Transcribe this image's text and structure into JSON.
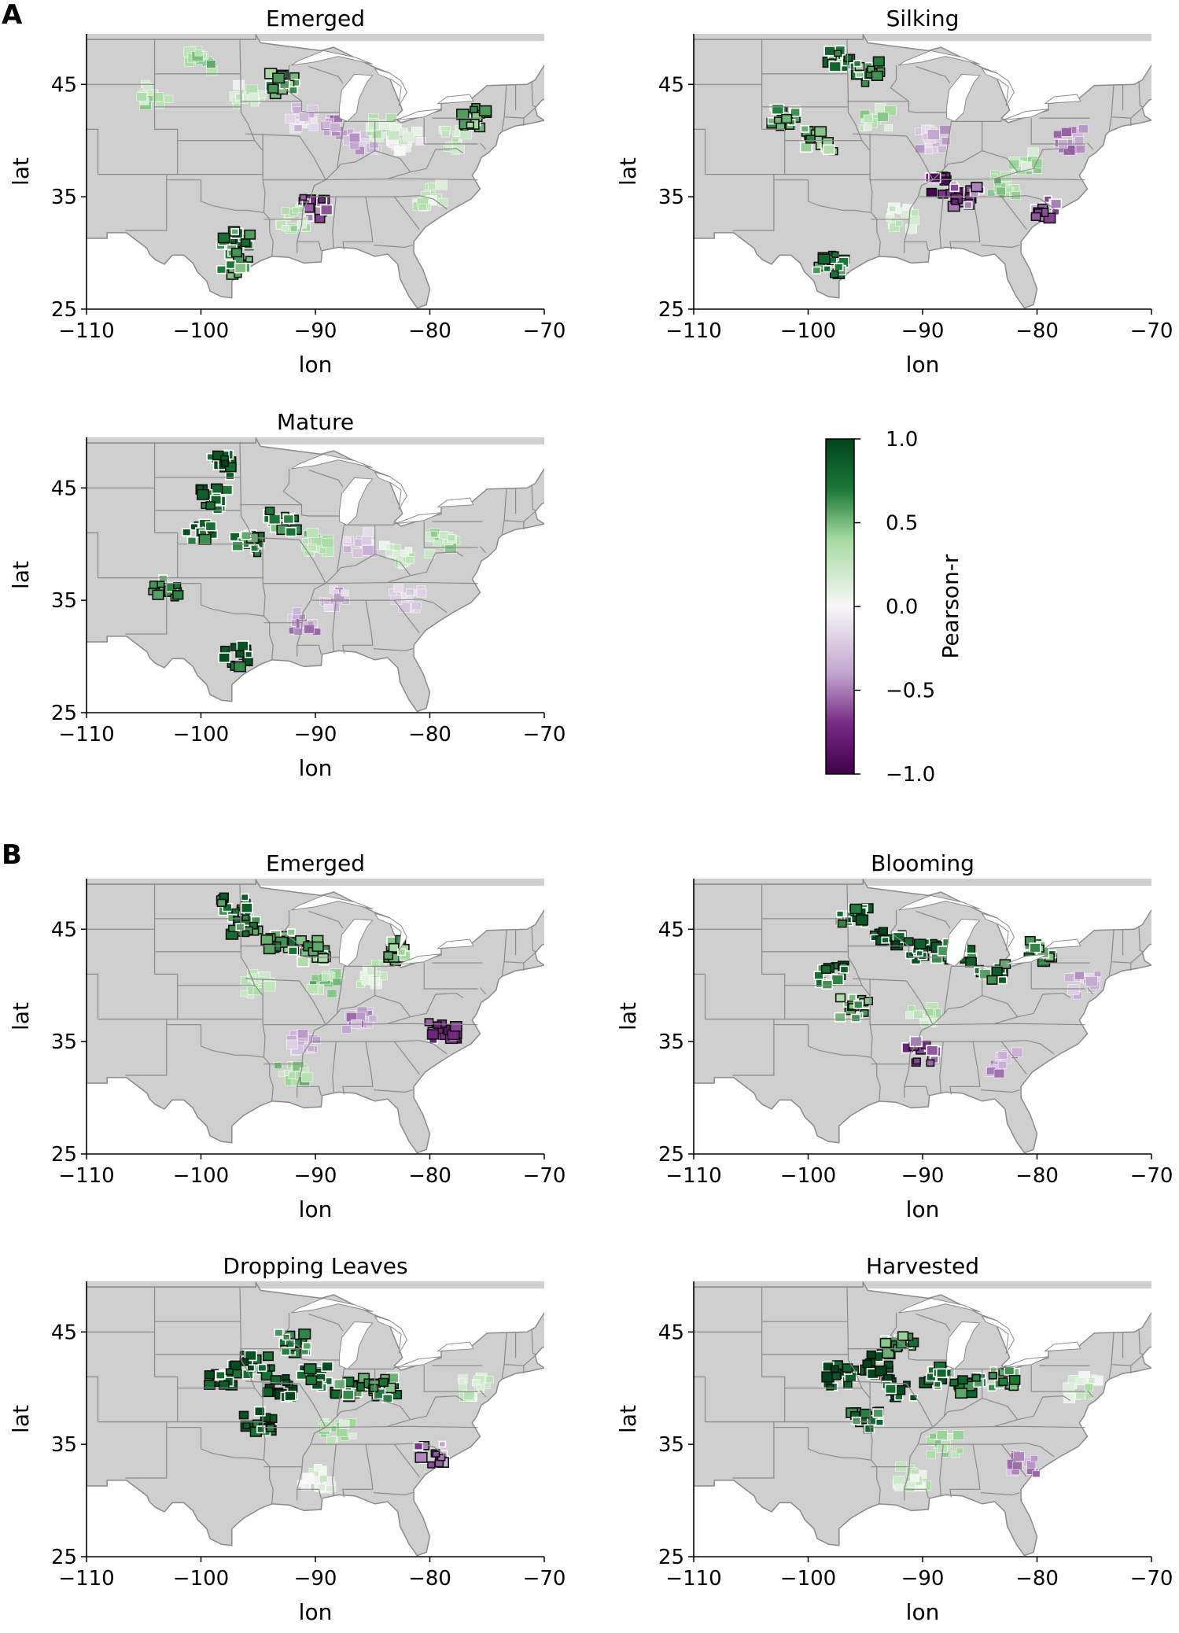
{
  "figure": {
    "panel_a_letter": "A",
    "panel_b_letter": "B"
  },
  "colors": {
    "land": "#cfcfcf",
    "state_border": "#8a8a8a",
    "significant_outline": "#111111",
    "cmap_low": "#40004b",
    "cmap_mid": "#f7f7f7",
    "cmap_high": "#00441b"
  },
  "chart_data": [
    {
      "type": "heatmap",
      "panel": "A",
      "title": "Emerged",
      "xlabel": "lon",
      "ylabel": "lat",
      "xlim": [
        -110,
        -70
      ],
      "ylim": [
        25,
        49.5
      ],
      "xticks": [
        "−110",
        "−100",
        "−90",
        "−80",
        "−70"
      ],
      "yticks": [
        "25",
        "35",
        "45"
      ],
      "regions": [
        {
          "lon": -104,
          "lat": 44,
          "r": 0.3
        },
        {
          "lon": -100,
          "lat": 47,
          "r": 0.4
        },
        {
          "lon": -96,
          "lat": 44,
          "r": 0.2
        },
        {
          "lon": -93,
          "lat": 45,
          "r": 0.5
        },
        {
          "lon": -91,
          "lat": 42,
          "r": -0.2
        },
        {
          "lon": -88,
          "lat": 41,
          "r": -0.4
        },
        {
          "lon": -86,
          "lat": 40,
          "r": -0.3
        },
        {
          "lon": -84,
          "lat": 41,
          "r": 0.2
        },
        {
          "lon": -82,
          "lat": 40,
          "r": 0.1
        },
        {
          "lon": -78,
          "lat": 40,
          "r": 0.3
        },
        {
          "lon": -76,
          "lat": 42,
          "r": 0.5
        },
        {
          "lon": -90,
          "lat": 34,
          "r": -0.6
        },
        {
          "lon": -92,
          "lat": 33,
          "r": 0.3
        },
        {
          "lon": -97,
          "lat": 31,
          "r": 0.7
        },
        {
          "lon": -97,
          "lat": 29,
          "r": 0.6
        },
        {
          "lon": -80,
          "lat": 35,
          "r": 0.2
        }
      ]
    },
    {
      "type": "heatmap",
      "panel": "A",
      "title": "Silking",
      "xlabel": "lon",
      "ylabel": "lat",
      "xlim": [
        -110,
        -70
      ],
      "ylim": [
        25,
        49.5
      ],
      "xticks": [
        "−110",
        "−100",
        "−90",
        "−80",
        "−70"
      ],
      "yticks": [
        "25",
        "35",
        "45"
      ],
      "regions": [
        {
          "lon": -97,
          "lat": 47,
          "r": 0.7
        },
        {
          "lon": -95,
          "lat": 46,
          "r": 0.6
        },
        {
          "lon": -102,
          "lat": 42,
          "r": 0.6
        },
        {
          "lon": -99,
          "lat": 40,
          "r": 0.5
        },
        {
          "lon": -94,
          "lat": 42,
          "r": 0.3
        },
        {
          "lon": -89,
          "lat": 40,
          "r": -0.3
        },
        {
          "lon": -88,
          "lat": 36,
          "r": -0.8
        },
        {
          "lon": -86,
          "lat": 35,
          "r": -0.6
        },
        {
          "lon": -83,
          "lat": 36,
          "r": 0.4
        },
        {
          "lon": -79,
          "lat": 34,
          "r": -0.5
        },
        {
          "lon": -77,
          "lat": 40,
          "r": -0.4
        },
        {
          "lon": -98,
          "lat": 29,
          "r": 0.7
        },
        {
          "lon": -92,
          "lat": 33,
          "r": 0.2
        },
        {
          "lon": -81,
          "lat": 38,
          "r": 0.3
        }
      ]
    },
    {
      "type": "heatmap",
      "panel": "A",
      "title": "Mature",
      "xlabel": "lon",
      "ylabel": "lat",
      "xlim": [
        -110,
        -70
      ],
      "ylim": [
        25,
        49.5
      ],
      "xticks": [
        "−110",
        "−100",
        "−90",
        "−80",
        "−70"
      ],
      "yticks": [
        "25",
        "35",
        "45"
      ],
      "regions": [
        {
          "lon": -98,
          "lat": 47,
          "r": 0.9
        },
        {
          "lon": -99,
          "lat": 44,
          "r": 0.8
        },
        {
          "lon": -100,
          "lat": 41,
          "r": 0.8
        },
        {
          "lon": -96,
          "lat": 40,
          "r": 0.7
        },
        {
          "lon": -93,
          "lat": 42,
          "r": 0.6
        },
        {
          "lon": -90,
          "lat": 40,
          "r": 0.4
        },
        {
          "lon": -86,
          "lat": 40,
          "r": -0.2
        },
        {
          "lon": -83,
          "lat": 39,
          "r": 0.2
        },
        {
          "lon": -79,
          "lat": 40,
          "r": 0.3
        },
        {
          "lon": -88,
          "lat": 35,
          "r": -0.3
        },
        {
          "lon": -82,
          "lat": 35,
          "r": -0.2
        },
        {
          "lon": -97,
          "lat": 30,
          "r": 0.8
        },
        {
          "lon": -103,
          "lat": 36,
          "r": 0.6
        },
        {
          "lon": -91,
          "lat": 33,
          "r": -0.4
        }
      ]
    },
    {
      "type": "heatmap",
      "panel": "B",
      "title": "Emerged",
      "xlabel": "lon",
      "ylabel": "lat",
      "xlim": [
        -110,
        -70
      ],
      "ylim": [
        25,
        49.5
      ],
      "xticks": [
        "−110",
        "−100",
        "−90",
        "−80",
        "−70"
      ],
      "yticks": [
        "25",
        "35",
        "45"
      ],
      "regions": [
        {
          "lon": -97,
          "lat": 47,
          "r": 0.7
        },
        {
          "lon": -96,
          "lat": 45,
          "r": 0.6
        },
        {
          "lon": -93,
          "lat": 44,
          "r": 0.6
        },
        {
          "lon": -90,
          "lat": 43,
          "r": 0.5
        },
        {
          "lon": -89,
          "lat": 40,
          "r": 0.4
        },
        {
          "lon": -85,
          "lat": 41,
          "r": 0.2
        },
        {
          "lon": -83,
          "lat": 43,
          "r": 0.5
        },
        {
          "lon": -86,
          "lat": 37,
          "r": -0.4
        },
        {
          "lon": -79,
          "lat": 36,
          "r": -0.7
        },
        {
          "lon": -91,
          "lat": 35,
          "r": -0.3
        },
        {
          "lon": -92,
          "lat": 32,
          "r": 0.4
        },
        {
          "lon": -95,
          "lat": 40,
          "r": 0.2
        }
      ]
    },
    {
      "type": "heatmap",
      "panel": "B",
      "title": "Blooming",
      "xlabel": "lon",
      "ylabel": "lat",
      "xlim": [
        -110,
        -70
      ],
      "ylim": [
        25,
        49.5
      ],
      "xticks": [
        "−110",
        "−100",
        "−90",
        "−80",
        "−70"
      ],
      "yticks": [
        "25",
        "35",
        "45"
      ],
      "regions": [
        {
          "lon": -96,
          "lat": 46,
          "r": 0.8
        },
        {
          "lon": -93,
          "lat": 44,
          "r": 0.9
        },
        {
          "lon": -90,
          "lat": 43,
          "r": 0.8
        },
        {
          "lon": -87,
          "lat": 43,
          "r": 0.7
        },
        {
          "lon": -84,
          "lat": 41,
          "r": 0.7
        },
        {
          "lon": -98,
          "lat": 41,
          "r": 0.7
        },
        {
          "lon": -96,
          "lat": 38,
          "r": 0.5
        },
        {
          "lon": -90,
          "lat": 37,
          "r": 0.3
        },
        {
          "lon": -90,
          "lat": 34,
          "r": -0.6
        },
        {
          "lon": -83,
          "lat": 33,
          "r": -0.4
        },
        {
          "lon": -76,
          "lat": 40,
          "r": -0.3
        },
        {
          "lon": -80,
          "lat": 43,
          "r": 0.6
        }
      ]
    },
    {
      "type": "heatmap",
      "panel": "B",
      "title": "Dropping Leaves",
      "xlabel": "lon",
      "ylabel": "lat",
      "xlim": [
        -110,
        -70
      ],
      "ylim": [
        25,
        49.5
      ],
      "xticks": [
        "−110",
        "−100",
        "−90",
        "−80",
        "−70"
      ],
      "yticks": [
        "25",
        "35",
        "45"
      ],
      "regions": [
        {
          "lon": -98,
          "lat": 41,
          "r": 0.9
        },
        {
          "lon": -95,
          "lat": 42,
          "r": 0.9
        },
        {
          "lon": -93,
          "lat": 40,
          "r": 0.9
        },
        {
          "lon": -90,
          "lat": 41,
          "r": 0.8
        },
        {
          "lon": -87,
          "lat": 40,
          "r": 0.7
        },
        {
          "lon": -84,
          "lat": 40,
          "r": 0.6
        },
        {
          "lon": -92,
          "lat": 44,
          "r": 0.7
        },
        {
          "lon": -95,
          "lat": 37,
          "r": 0.8
        },
        {
          "lon": -88,
          "lat": 36,
          "r": 0.3
        },
        {
          "lon": -80,
          "lat": 34,
          "r": -0.5
        },
        {
          "lon": -90,
          "lat": 32,
          "r": 0.1
        },
        {
          "lon": -76,
          "lat": 40,
          "r": 0.2
        }
      ]
    },
    {
      "type": "heatmap",
      "panel": "B",
      "title": "Harvested",
      "xlabel": "lon",
      "ylabel": "lat",
      "xlim": [
        -110,
        -70
      ],
      "ylim": [
        25,
        49.5
      ],
      "xticks": [
        "−110",
        "−100",
        "−90",
        "−80",
        "−70"
      ],
      "yticks": [
        "25",
        "35",
        "45"
      ],
      "regions": [
        {
          "lon": -97,
          "lat": 41,
          "r": 0.9
        },
        {
          "lon": -94,
          "lat": 42,
          "r": 0.9
        },
        {
          "lon": -92,
          "lat": 40,
          "r": 0.9
        },
        {
          "lon": -89,
          "lat": 41,
          "r": 0.8
        },
        {
          "lon": -86,
          "lat": 40,
          "r": 0.7
        },
        {
          "lon": -83,
          "lat": 41,
          "r": 0.6
        },
        {
          "lon": -92,
          "lat": 44,
          "r": 0.6
        },
        {
          "lon": -95,
          "lat": 37,
          "r": 0.7
        },
        {
          "lon": -88,
          "lat": 35,
          "r": 0.3
        },
        {
          "lon": -81,
          "lat": 33,
          "r": -0.4
        },
        {
          "lon": -91,
          "lat": 32,
          "r": 0.2
        },
        {
          "lon": -76,
          "lat": 40,
          "r": 0.2
        }
      ]
    }
  ],
  "colorbar": {
    "label": "Pearson-r",
    "range": [
      -1.0,
      1.0
    ],
    "ticks": [
      {
        "value": 1.0,
        "label": "1.0"
      },
      {
        "value": 0.5,
        "label": "0.5"
      },
      {
        "value": 0.0,
        "label": "0.0"
      },
      {
        "value": -0.5,
        "label": "−0.5"
      },
      {
        "value": -1.0,
        "label": "−1.0"
      }
    ]
  }
}
